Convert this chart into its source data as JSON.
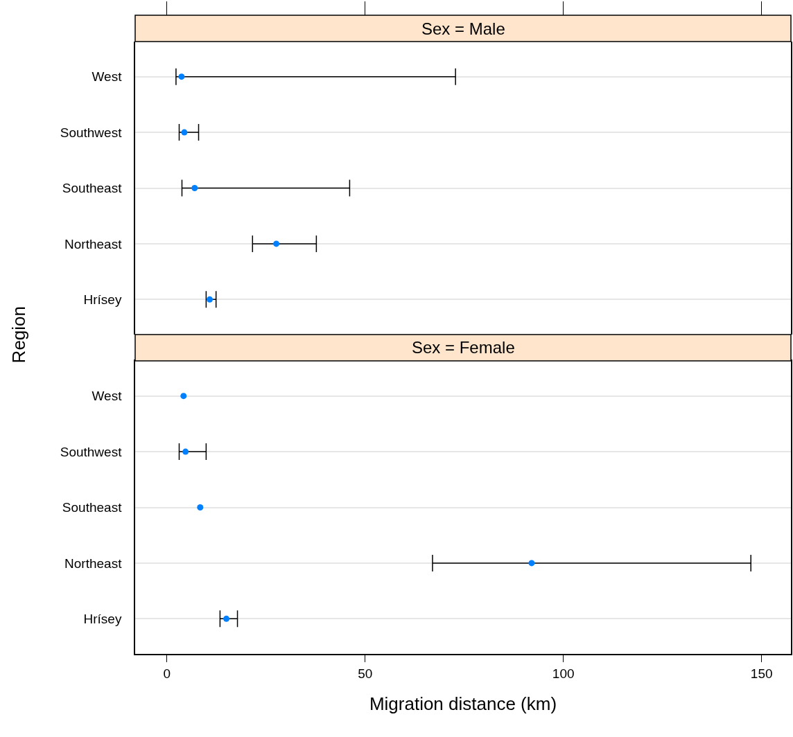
{
  "chart_data": [
    {
      "type": "scatter",
      "orientation": "horizontal",
      "title": "Sex = Male",
      "ylabel": "Region",
      "categories": [
        "West",
        "Southwest",
        "Southeast",
        "Northeast",
        "Hrísey"
      ],
      "series": [
        {
          "color": "#0080ff",
          "values": [
            3.7,
            4.4,
            7.0,
            27.6,
            10.8
          ],
          "errors": [
            [
              2.3,
              72.8
            ],
            [
              3.1,
              8.0
            ],
            [
              3.8,
              46.1
            ],
            [
              21.6,
              37.7
            ],
            [
              9.9,
              12.4
            ]
          ]
        }
      ],
      "xlim": [
        -8,
        157.4
      ],
      "xticks": [
        0,
        50,
        100,
        150
      ],
      "tick_labels": "y",
      "grid": "y",
      "marker": "circle",
      "legend": false
    },
    {
      "type": "scatter",
      "orientation": "horizontal",
      "title": "Sex = Female",
      "xlabel": "Migration distance (km)",
      "categories": [
        "West",
        "Southwest",
        "Southeast",
        "Northeast",
        "Hrísey"
      ],
      "series": [
        {
          "color": "#0080ff",
          "values": [
            4.2,
            4.7,
            8.4,
            92.0,
            15.0
          ],
          "errors": [
            null,
            [
              3.1,
              9.9
            ],
            null,
            [
              67.0,
              147.3
            ],
            [
              13.4,
              17.8
            ]
          ]
        }
      ],
      "xlim": [
        -8,
        157.4
      ],
      "xticks": [
        0,
        50,
        100,
        150
      ],
      "grid": "y",
      "marker": "circle",
      "legend": false
    }
  ]
}
